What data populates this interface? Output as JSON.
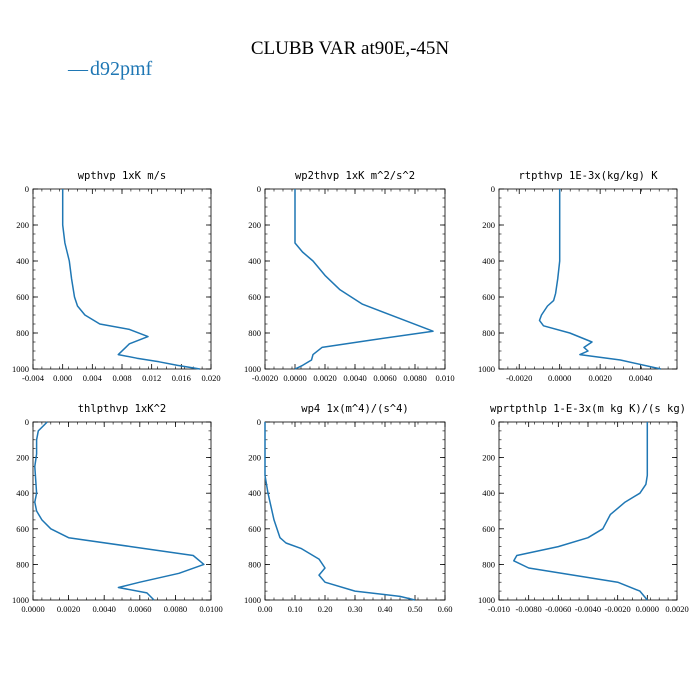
{
  "figure_title": "CLUBB VAR at90E,-45N",
  "colors": {
    "series": "#1f77b4",
    "axis": "#000000"
  },
  "legend": {
    "marker": "—",
    "label": "d92pmf"
  },
  "chart_data": [
    {
      "type": "line",
      "title": "wpthvp  1xK m/s",
      "series": [
        {
          "name": "d92pmf"
        }
      ],
      "xlim": [
        -0.004,
        0.02
      ],
      "ylim": [
        1000,
        0
      ],
      "y_inverted": true,
      "xticks": [
        "-0.004",
        "0.000",
        "0.004",
        "0.008",
        "0.012",
        "0.016",
        "0.020"
      ],
      "yticks": [
        "0",
        "200",
        "400",
        "600",
        "800",
        "1000"
      ],
      "x": [
        0.0,
        0.0,
        0.0003,
        0.0006,
        0.0009,
        0.0012,
        0.0016,
        0.002,
        0.003,
        0.005,
        0.009,
        0.0115,
        0.009,
        0.0075,
        0.01,
        0.013,
        0.0155,
        0.0185
      ],
      "y": [
        0,
        200,
        300,
        350,
        400,
        500,
        600,
        650,
        700,
        750,
        780,
        820,
        860,
        920,
        940,
        960,
        980,
        1000
      ]
    },
    {
      "type": "line",
      "title": "wp2thvp  1xK m^2/s^2",
      "series": [
        {
          "name": "d92pmf"
        }
      ],
      "xlim": [
        -0.002,
        0.01
      ],
      "ylim": [
        1000,
        0
      ],
      "y_inverted": true,
      "xticks": [
        "-0.0020",
        "0.0000",
        "0.0020",
        "0.0040",
        "0.0060",
        "0.0080",
        "0.010"
      ],
      "yticks": [
        "0",
        "200",
        "400",
        "600",
        "800",
        "1000"
      ],
      "x": [
        0.0,
        0.0,
        0.0,
        0.0005,
        0.0012,
        0.002,
        0.003,
        0.0045,
        0.007,
        0.0092,
        0.005,
        0.0018,
        0.0012,
        0.0011,
        0.0005,
        0.0
      ],
      "y": [
        0,
        150,
        300,
        350,
        400,
        480,
        560,
        640,
        720,
        790,
        840,
        880,
        920,
        950,
        980,
        1000
      ]
    },
    {
      "type": "line",
      "title": "rtpthvp  1E-3x(kg/kg) K",
      "series": [
        {
          "name": "d92pmf"
        }
      ],
      "xlim": [
        -0.003,
        0.0058
      ],
      "ylim": [
        1000,
        0
      ],
      "y_inverted": true,
      "xticks": [
        "-0.0020",
        "0.0000",
        "0.0020",
        "0.0040"
      ],
      "yticks": [
        "0",
        "200",
        "400",
        "600",
        "800",
        "1000"
      ],
      "x": [
        0.0,
        0.0,
        0.0,
        -0.0001,
        -0.0002,
        -0.0003,
        -0.0006,
        -0.0009,
        -0.001,
        -0.0008,
        0.0005,
        0.0016,
        0.0012,
        0.0014,
        0.001,
        0.003,
        0.005
      ],
      "y": [
        0,
        200,
        400,
        500,
        580,
        620,
        650,
        700,
        730,
        760,
        800,
        850,
        880,
        900,
        920,
        950,
        1000
      ]
    },
    {
      "type": "line",
      "title": "thlpthvp  1xK^2",
      "series": [
        {
          "name": "d92pmf"
        }
      ],
      "xlim": [
        0.0,
        0.01
      ],
      "ylim": [
        1000,
        0
      ],
      "y_inverted": true,
      "xticks": [
        "0.0000",
        "0.0020",
        "0.0040",
        "0.0060",
        "0.0080",
        "0.0100"
      ],
      "yticks": [
        "0",
        "200",
        "400",
        "600",
        "800",
        "1000"
      ],
      "x": [
        0.0008,
        0.0003,
        0.0002,
        0.0002,
        0.0001,
        0.0002,
        0.0001,
        0.0002,
        0.0005,
        0.001,
        0.002,
        0.0055,
        0.009,
        0.0096,
        0.0082,
        0.006,
        0.0048,
        0.0064,
        0.0068
      ],
      "y": [
        0,
        50,
        100,
        180,
        250,
        400,
        450,
        500,
        550,
        600,
        650,
        700,
        750,
        800,
        850,
        900,
        930,
        960,
        1000
      ]
    },
    {
      "type": "line",
      "title": "wp4  1x(m^4)/(s^4)",
      "series": [
        {
          "name": "d92pmf"
        }
      ],
      "xlim": [
        0.0,
        0.6
      ],
      "ylim": [
        1000,
        0
      ],
      "y_inverted": true,
      "xticks": [
        "0.00",
        "0.10",
        "0.20",
        "0.30",
        "0.40",
        "0.50",
        "0.60"
      ],
      "yticks": [
        "0",
        "200",
        "400",
        "600",
        "800",
        "1000"
      ],
      "x": [
        0.0,
        0.0,
        0.01,
        0.03,
        0.05,
        0.07,
        0.12,
        0.18,
        0.2,
        0.18,
        0.2,
        0.3,
        0.45,
        0.5
      ],
      "y": [
        0,
        300,
        400,
        550,
        650,
        680,
        710,
        770,
        820,
        860,
        900,
        950,
        980,
        1000
      ]
    },
    {
      "type": "line",
      "title": "wprtpthlp  1-E-3x(m kg K)/(s kg)",
      "series": [
        {
          "name": "d92pmf"
        }
      ],
      "xlim": [
        -0.01,
        0.002
      ],
      "ylim": [
        1000,
        0
      ],
      "y_inverted": true,
      "xticks": [
        "-0.010",
        "-0.0080",
        "-0.0060",
        "-0.0040",
        "-0.0020",
        "0.0000",
        "0.0020"
      ],
      "yticks": [
        "0",
        "200",
        "400",
        "600",
        "800",
        "1000"
      ],
      "x": [
        0.0,
        0.0,
        0.0,
        -0.0001,
        -0.0005,
        -0.0015,
        -0.0025,
        -0.003,
        -0.004,
        -0.006,
        -0.0088,
        -0.009,
        -0.008,
        -0.005,
        -0.002,
        -0.0005,
        0.0
      ],
      "y": [
        0,
        200,
        300,
        350,
        400,
        450,
        520,
        600,
        650,
        700,
        750,
        780,
        820,
        860,
        900,
        950,
        1000
      ]
    }
  ]
}
